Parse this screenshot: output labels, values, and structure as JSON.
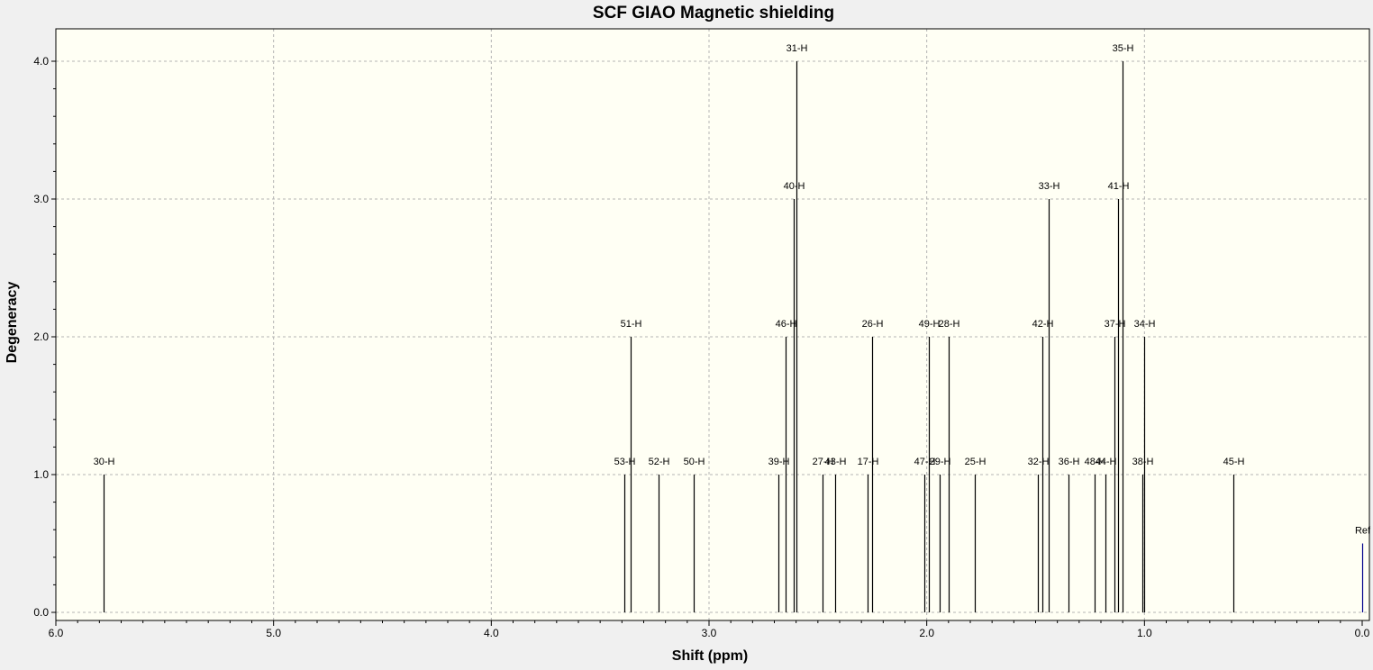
{
  "colors": {
    "background": "#f0f0f0",
    "plot_background": "#fffff4",
    "grid": "#b4b4b4",
    "stick": "#000000",
    "ref_stick": "#00008b"
  },
  "chart_data": {
    "type": "bar",
    "title": "SCF GIAO Magnetic shielding",
    "xlabel": "Shift (ppm)",
    "ylabel": "Degeneracy",
    "xlim": [
      6.0,
      0.0
    ],
    "ylim": [
      0.0,
      4.0
    ],
    "x_reversed": true,
    "grid": true,
    "xticks": [
      "6.0",
      "5.0",
      "4.0",
      "3.0",
      "2.0",
      "1.0",
      "0.0"
    ],
    "yticks": [
      "0.0",
      "1.0",
      "2.0",
      "3.0",
      "4.0"
    ],
    "peaks": [
      {
        "label": "30-H",
        "shift": 5.78,
        "degeneracy": 1
      },
      {
        "label": "53-H",
        "shift": 3.39,
        "degeneracy": 1
      },
      {
        "label": "51-H",
        "shift": 3.36,
        "degeneracy": 2
      },
      {
        "label": "52-H",
        "shift": 3.23,
        "degeneracy": 1
      },
      {
        "label": "50-H",
        "shift": 3.07,
        "degeneracy": 1
      },
      {
        "label": "39-H",
        "shift": 2.68,
        "degeneracy": 1
      },
      {
        "label": "46-H",
        "shift": 2.65,
        "degeneracy": 2
      },
      {
        "label": "40-H",
        "shift": 2.61,
        "degeneracy": 3
      },
      {
        "label": "31-H",
        "shift": 2.6,
        "degeneracy": 4
      },
      {
        "label": "27-H",
        "shift": 2.48,
        "degeneracy": 1
      },
      {
        "label": "43-H",
        "shift": 2.42,
        "degeneracy": 1
      },
      {
        "label": "17-H",
        "shift": 2.27,
        "degeneracy": 1
      },
      {
        "label": "26-H",
        "shift": 2.25,
        "degeneracy": 2
      },
      {
        "label": "47-H",
        "shift": 2.01,
        "degeneracy": 1
      },
      {
        "label": "49-H",
        "shift": 1.99,
        "degeneracy": 2
      },
      {
        "label": "29-H",
        "shift": 1.94,
        "degeneracy": 1
      },
      {
        "label": "28-H",
        "shift": 1.9,
        "degeneracy": 2
      },
      {
        "label": "25-H",
        "shift": 1.78,
        "degeneracy": 1
      },
      {
        "label": "32-H",
        "shift": 1.49,
        "degeneracy": 1
      },
      {
        "label": "42-H",
        "shift": 1.47,
        "degeneracy": 2
      },
      {
        "label": "33-H",
        "shift": 1.44,
        "degeneracy": 3
      },
      {
        "label": "36-H",
        "shift": 1.35,
        "degeneracy": 1
      },
      {
        "label": "48-H",
        "shift": 1.23,
        "degeneracy": 1
      },
      {
        "label": "44-H",
        "shift": 1.18,
        "degeneracy": 1
      },
      {
        "label": "37-H",
        "shift": 1.14,
        "degeneracy": 2
      },
      {
        "label": "41-H",
        "shift": 1.12,
        "degeneracy": 3
      },
      {
        "label": "35-H",
        "shift": 1.1,
        "degeneracy": 4
      },
      {
        "label": "38-H",
        "shift": 1.01,
        "degeneracy": 1
      },
      {
        "label": "34-H",
        "shift": 1.0,
        "degeneracy": 2
      },
      {
        "label": "45-H",
        "shift": 0.59,
        "degeneracy": 1
      },
      {
        "label": "Ref",
        "shift": 0.0,
        "degeneracy": 0.5
      }
    ]
  }
}
